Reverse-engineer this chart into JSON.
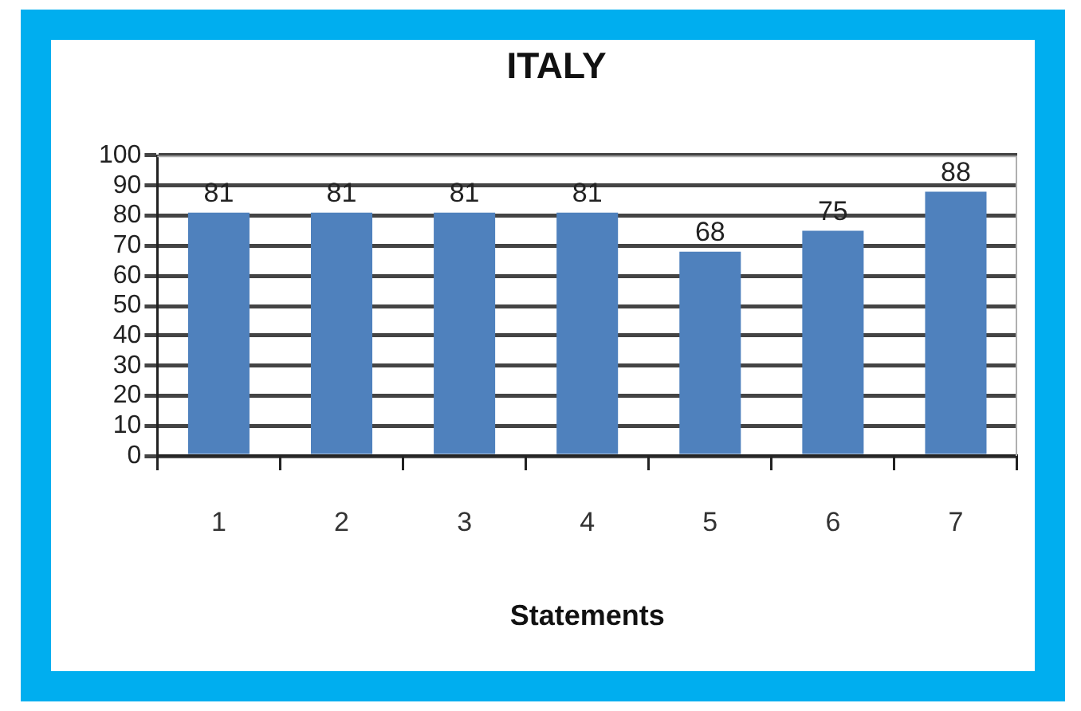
{
  "chart_data": {
    "type": "bar",
    "title": "ITALY",
    "xlabel": "Statements",
    "categories": [
      "1",
      "2",
      "3",
      "4",
      "5",
      "6",
      "7"
    ],
    "values": [
      81,
      81,
      81,
      81,
      68,
      75,
      88
    ],
    "color": "#4f81bd",
    "ylim": [
      0,
      100
    ],
    "yticks": [
      0,
      10,
      20,
      30,
      40,
      50,
      60,
      70,
      80,
      90,
      100
    ],
    "grid": "y",
    "data_labels": true
  }
}
